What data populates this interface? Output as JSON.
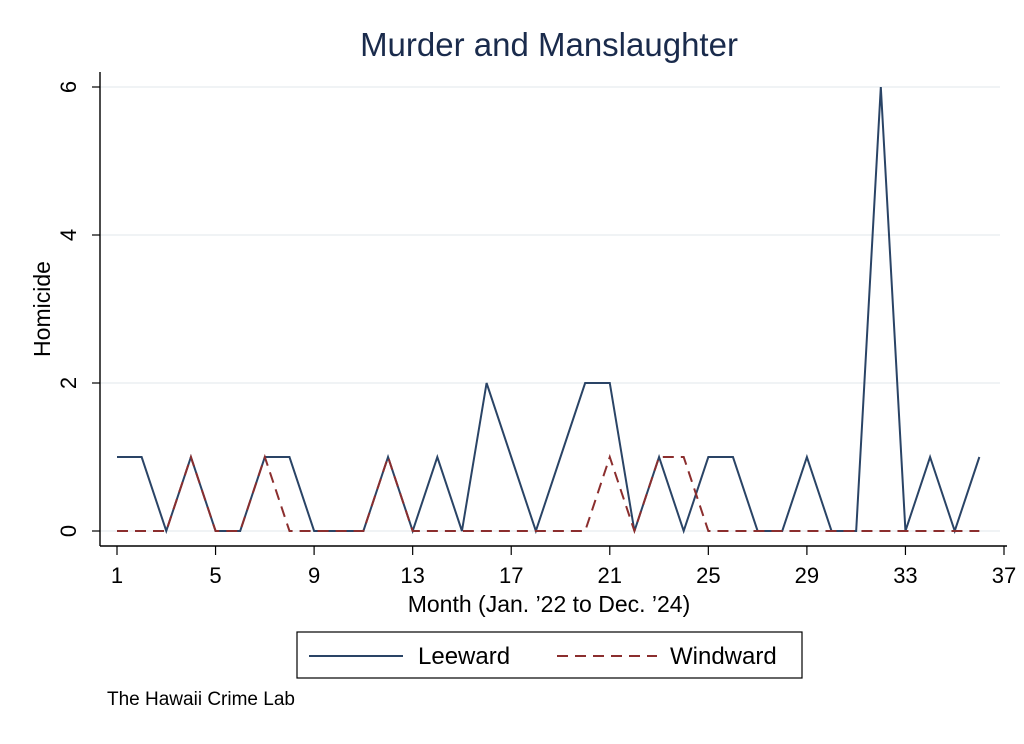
{
  "chart_data": {
    "type": "line",
    "title": "Murder and Manslaughter",
    "xlabel": "Month (Jan. ’22 to Dec. ’24)",
    "ylabel": "Homicide",
    "xlim": [
      1,
      37
    ],
    "ylim": [
      0,
      6
    ],
    "xticks": [
      1,
      5,
      9,
      13,
      17,
      21,
      25,
      29,
      33,
      37
    ],
    "yticks": [
      0,
      2,
      4,
      6
    ],
    "grid": true,
    "legend_position": "bottom",
    "x": [
      1,
      2,
      3,
      4,
      5,
      6,
      7,
      8,
      9,
      10,
      11,
      12,
      13,
      14,
      15,
      16,
      17,
      18,
      19,
      20,
      21,
      22,
      23,
      24,
      25,
      26,
      27,
      28,
      29,
      30,
      31,
      32,
      33,
      34,
      35,
      36
    ],
    "series": [
      {
        "name": "Leeward",
        "color": "#2a4466",
        "style": "solid",
        "values": [
          1,
          1,
          0,
          1,
          0,
          0,
          1,
          1,
          0,
          0,
          0,
          1,
          0,
          1,
          0,
          2,
          1,
          0,
          1,
          2,
          2,
          0,
          1,
          0,
          1,
          1,
          0,
          0,
          1,
          0,
          0,
          6,
          0,
          1,
          0,
          1
        ]
      },
      {
        "name": "Windward",
        "color": "#8b2e2e",
        "style": "dashed",
        "values": [
          0,
          0,
          0,
          1,
          0,
          0,
          1,
          0,
          0,
          0,
          0,
          1,
          0,
          0,
          0,
          0,
          0,
          0,
          0,
          0,
          1,
          0,
          1,
          1,
          0,
          0,
          0,
          0,
          0,
          0,
          0,
          0,
          0,
          0,
          0,
          0
        ]
      }
    ]
  },
  "note": "The Hawaii Crime Lab"
}
